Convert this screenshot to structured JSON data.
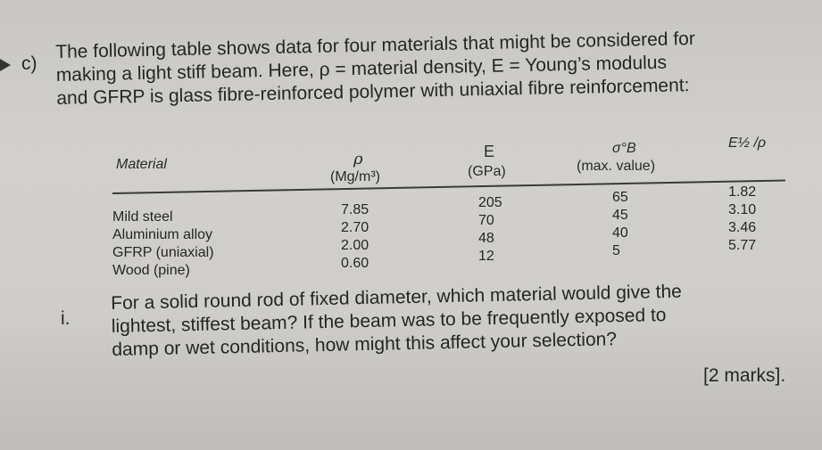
{
  "question": {
    "label": "c)",
    "intro_lines": [
      "The following table shows data for four materials that might be considered for",
      "making a light stiff beam.  Here, ρ = material density,  E = Young’s modulus",
      "and GFRP is glass fibre-reinforced polymer with uniaxial fibre reinforcement:"
    ]
  },
  "table": {
    "headers": {
      "material": "Material",
      "rho_symbol": "ρ",
      "rho_unit": "(Mg/m³)",
      "e_symbol": "E",
      "e_unit": "(GPa)",
      "sigma_symbol": "σ°B",
      "sigma_unit": "(max. value)",
      "ratio_symbol": "E½ /ρ"
    },
    "rows": [
      {
        "material": "Mild steel",
        "rho": "7.85",
        "e": "205",
        "sigma": "65",
        "ratio": "1.82"
      },
      {
        "material": "Aluminium alloy",
        "rho": "2.70",
        "e": "70",
        "sigma": "45",
        "ratio": "3.10"
      },
      {
        "material": "GFRP (uniaxial)",
        "rho": "2.00",
        "e": "48",
        "sigma": "40",
        "ratio": "3.46"
      },
      {
        "material": "Wood (pine)",
        "rho": "0.60",
        "e": "12",
        "sigma": "5",
        "ratio": "5.77"
      }
    ]
  },
  "subquestion": {
    "label": "i.",
    "lines": [
      "For a solid round rod of fixed diameter, which material would give the",
      "lightest, stiffest beam?  If the beam was to be frequently exposed to",
      "damp or wet conditions, how might this affect your selection?"
    ],
    "marks": "[2 marks]."
  }
}
